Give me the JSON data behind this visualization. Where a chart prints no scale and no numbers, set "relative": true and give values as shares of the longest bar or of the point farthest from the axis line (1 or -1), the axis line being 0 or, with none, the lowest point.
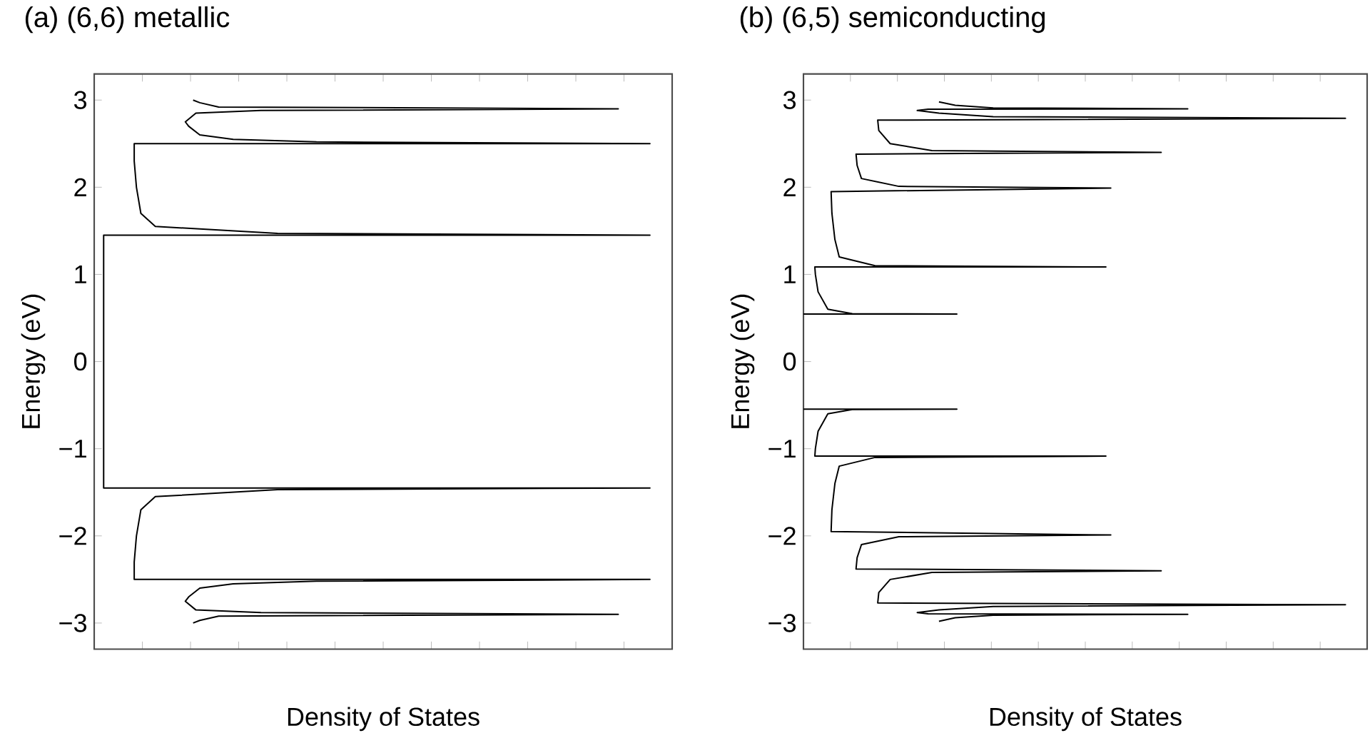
{
  "chart_data": [
    {
      "type": "line",
      "orientation": "horizontal",
      "title": "(a)  (6,6) metallic",
      "xlabel": "Density of States",
      "ylabel": "Energy (eV)",
      "relative": true,
      "tick_labels": "y",
      "marker": "none",
      "ylim": [
        -3.3,
        3.3
      ],
      "yticks": [
        {
          "value": -3,
          "label": "−3"
        },
        {
          "value": -2,
          "label": "−2"
        },
        {
          "value": -1,
          "label": "−1"
        },
        {
          "value": 0,
          "label": "0"
        },
        {
          "value": 1,
          "label": "1"
        },
        {
          "value": 2,
          "label": "2"
        },
        {
          "value": 3,
          "label": "3"
        }
      ],
      "series": [
        {
          "color": "#000000",
          "values": [
            0.178,
            0.19,
            0.224,
            0.943,
            0.3,
            0.183,
            0.164,
            0.17,
            0.19,
            0.25,
            0.4,
            1,
            0.072,
            0.072,
            0.076,
            0.084,
            0.11,
            0.33,
            1,
            0.017,
            0.017,
            0.017,
            1,
            0.33,
            0.11,
            0.084,
            0.076,
            0.072,
            0.072,
            1,
            0.4,
            0.25,
            0.19,
            0.17,
            0.164,
            0.183,
            0.3,
            0.943,
            0.224,
            0.19,
            0.178
          ],
          "x": [
            -3.0,
            -2.97,
            -2.92,
            -2.9,
            -2.88,
            -2.85,
            -2.75,
            -2.7,
            -2.6,
            -2.55,
            -2.52,
            -2.5,
            -2.5,
            -2.3,
            -2.0,
            -1.7,
            -1.55,
            -1.47,
            -1.45,
            -1.45,
            0,
            1.45,
            1.45,
            1.47,
            1.55,
            1.7,
            2.0,
            2.3,
            2.5,
            2.5,
            2.52,
            2.55,
            2.6,
            2.7,
            2.75,
            2.85,
            2.88,
            2.9,
            2.92,
            2.97,
            3.0
          ]
        }
      ]
    },
    {
      "type": "line",
      "orientation": "horizontal",
      "title": "(b)  (6,5) semiconducting",
      "xlabel": "Density of States",
      "ylabel": "Energy (eV)",
      "relative": true,
      "tick_labels": "y",
      "marker": "none",
      "ylim": [
        -3.3,
        3.3
      ],
      "yticks": [
        {
          "value": -3,
          "label": "−3"
        },
        {
          "value": -2,
          "label": "−2"
        },
        {
          "value": -1,
          "label": "−1"
        },
        {
          "value": 0,
          "label": "0"
        },
        {
          "value": 1,
          "label": "1"
        },
        {
          "value": 2,
          "label": "2"
        },
        {
          "value": 3,
          "label": "3"
        }
      ],
      "series": [
        {
          "color": "#000000",
          "values": [
            0.25,
            0.28,
            0.35,
            0.709,
            0.23,
            0.21,
            0.25,
            0.35,
            1,
            0.137,
            0.139,
            0.16,
            0.237,
            0.66,
            0.097,
            0.099,
            0.107,
            0.176,
            0.567,
            0.051,
            0.0525,
            0.058,
            0.066,
            0.132,
            0.558,
            0.021,
            0.022,
            0.027,
            0.045,
            0.09,
            0.283,
            0,
            null,
            0,
            0.283,
            0.09,
            0.045,
            0.027,
            0.022,
            0.021,
            0.558,
            0.132,
            0.066,
            0.058,
            0.0525,
            0.051,
            0.567,
            0.176,
            0.107,
            0.099,
            0.097,
            0.66,
            0.237,
            0.16,
            0.139,
            0.137,
            1,
            0.35,
            0.25,
            0.21,
            0.23,
            0.709,
            0.35,
            0.28,
            0.25
          ],
          "x": [
            -2.98,
            -2.94,
            -2.91,
            -2.9,
            -2.895,
            -2.88,
            -2.85,
            -2.81,
            -2.79,
            -2.77,
            -2.65,
            -2.5,
            -2.42,
            -2.4,
            -2.38,
            -2.25,
            -2.1,
            -2.01,
            -1.99,
            -1.95,
            -1.7,
            -1.4,
            -1.2,
            -1.1,
            -1.085,
            -1.085,
            -1.0,
            -0.8,
            -0.6,
            -0.55,
            -0.545,
            -0.545,
            0,
            0.545,
            0.545,
            0.55,
            0.6,
            0.8,
            1.0,
            1.085,
            1.085,
            1.1,
            1.2,
            1.4,
            1.7,
            1.95,
            1.99,
            2.01,
            2.1,
            2.25,
            2.38,
            2.4,
            2.42,
            2.5,
            2.65,
            2.77,
            2.79,
            2.81,
            2.85,
            2.88,
            2.895,
            2.9,
            2.91,
            2.94,
            2.98
          ]
        }
      ]
    }
  ]
}
